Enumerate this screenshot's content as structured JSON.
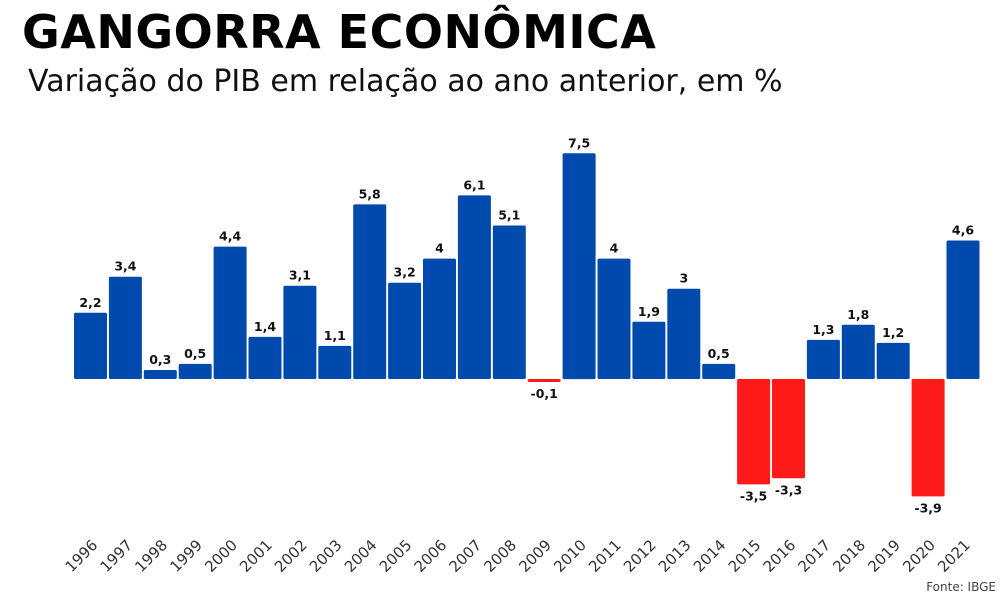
{
  "header": {
    "title": "GANGORRA ECONÔMICA",
    "subtitle": "Variação do PIB em relação ao ano anterior, em %"
  },
  "footer": {
    "source": "Fonte: IBGE"
  },
  "colors": {
    "positive": "#004aad",
    "negative": "#ff1a1a"
  },
  "chart_data": {
    "type": "bar",
    "title": "GANGORRA ECONÔMICA",
    "subtitle": "Variação do PIB em relação ao ano anterior, em %",
    "categories": [
      "1996",
      "1997",
      "1998",
      "1999",
      "2000",
      "2001",
      "2002",
      "2003",
      "2004",
      "2005",
      "2006",
      "2007",
      "2008",
      "2009",
      "2010",
      "2011",
      "2012",
      "2013",
      "2014",
      "2015",
      "2016",
      "2017",
      "2018",
      "2019",
      "2020",
      "2021"
    ],
    "values": [
      2.2,
      3.4,
      0.3,
      0.5,
      4.4,
      1.4,
      3.1,
      1.1,
      5.8,
      3.2,
      4,
      6.1,
      5.1,
      -0.1,
      7.5,
      4,
      1.9,
      3,
      0.5,
      -3.5,
      -3.3,
      1.3,
      1.8,
      1.2,
      -3.9,
      4.6
    ],
    "data_labels": [
      "2,2",
      "3,4",
      "0,3",
      "0,5",
      "4,4",
      "1,4",
      "3,1",
      "1,1",
      "5,8",
      "3,2",
      "4",
      "6,1",
      "5,1",
      "-0,1",
      "7,5",
      "4",
      "1,9",
      "3",
      "0,5",
      "-3,5",
      "-3,3",
      "1,3",
      "1,8",
      "1,2",
      "-3,9",
      "4,6"
    ],
    "ylim": [
      -5,
      8
    ],
    "grid": false,
    "legend": "none",
    "xlabel": "",
    "ylabel": ""
  }
}
